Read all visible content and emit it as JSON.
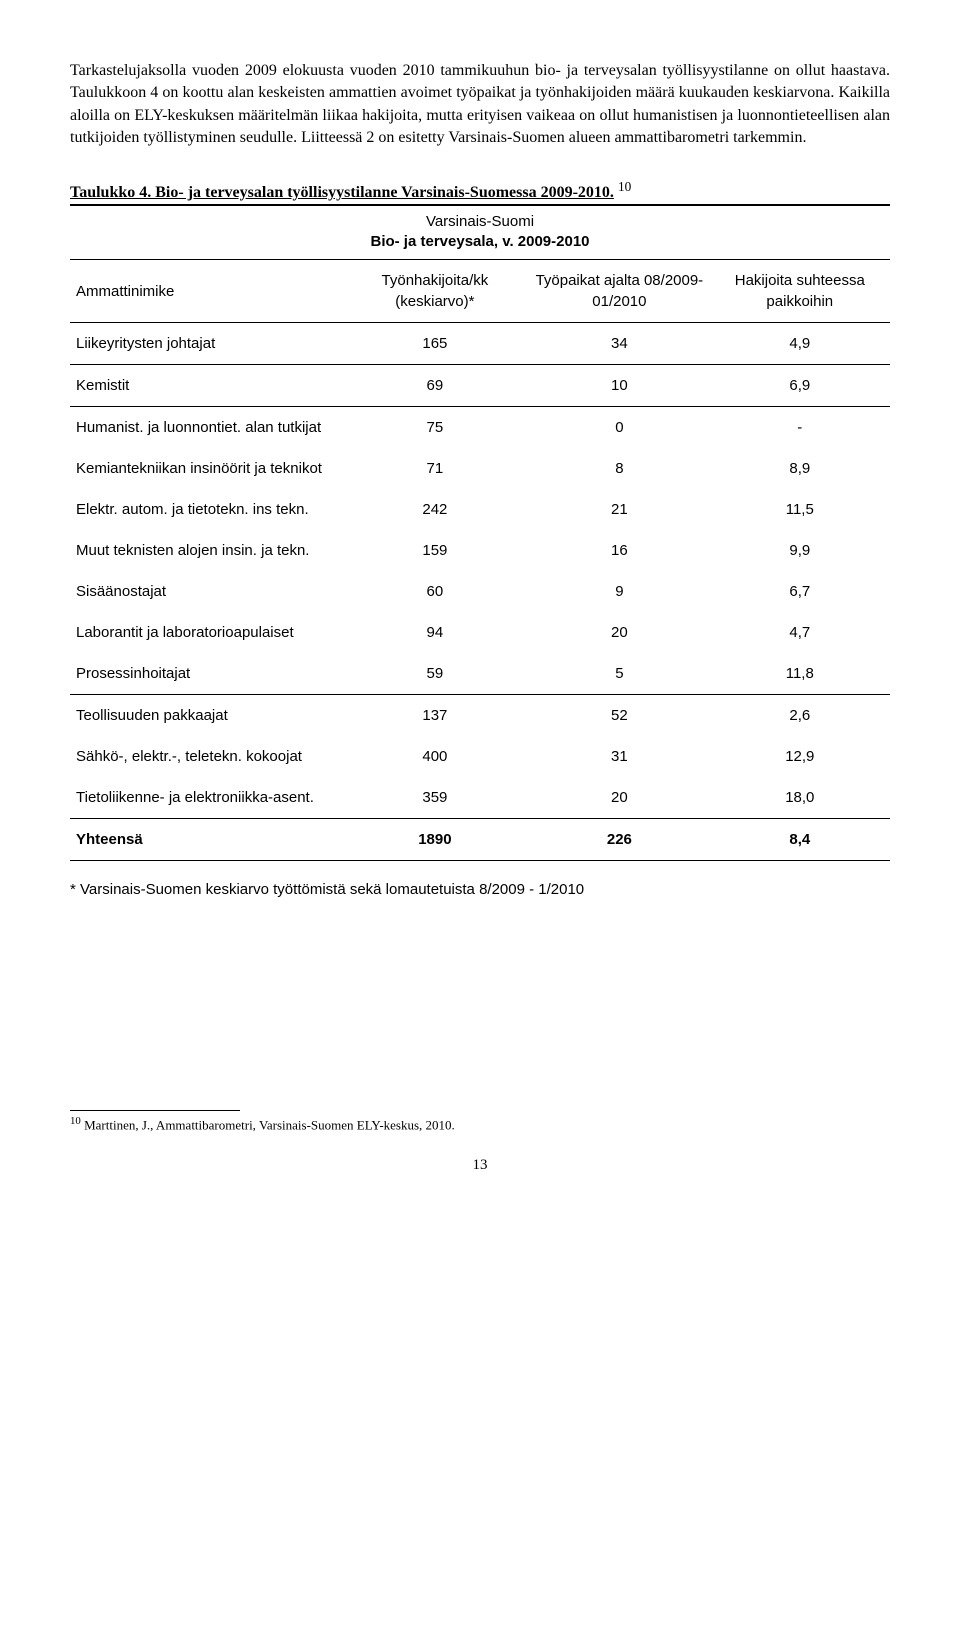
{
  "paragraph": "Tarkastelujaksolla vuoden 2009 elokuusta vuoden 2010 tammikuuhun bio- ja terveysalan työllisyystilanne on ollut haastava. Taulukkoon 4 on koottu alan keskeisten ammattien avoimet työpaikat ja työnhakijoiden määrä kuukauden keskiarvona. Kaikilla aloilla on ELY-keskuksen määritelmän liikaa hakijoita, mutta erityisen vaikeaa on ollut humanistisen ja luonnontieteellisen alan tutkijoiden työllistyminen seudulle. Liitteessä 2 on esitetty Varsinais-Suomen alueen ammattibarometri tarkemmin.",
  "caption": "Taulukko 4. Bio- ja terveysalan työllisyystilanne Varsinais-Suomessa 2009-2010.",
  "caption_sup": "10",
  "center_title_line1": "Varsinais-Suomi",
  "center_title_line2": "Bio- ja terveysala, v. 2009-2010",
  "headers": {
    "c1": "Ammattinimike",
    "c2": "Työnhakijoita/kk (keskiarvo)*",
    "c3": "Työpaikat ajalta 08/2009-01/2010",
    "c4": "Hakijoita suhteessa paikkoihin"
  },
  "rows": [
    {
      "name": "Liikeyritysten johtajat",
      "v1": "165",
      "v2": "34",
      "v3": "4,9",
      "sep": true
    },
    {
      "name": "Kemistit",
      "v1": "69",
      "v2": "10",
      "v3": "6,9",
      "sep": true
    },
    {
      "name": "Humanist. ja luonnontiet. alan tutkijat",
      "v1": "75",
      "v2": "0",
      "v3": "-",
      "sep": false
    },
    {
      "name": "Kemiantekniikan insinöörit ja teknikot",
      "v1": "71",
      "v2": "8",
      "v3": "8,9",
      "sep": false
    },
    {
      "name": "Elektr. autom. ja tietotekn. ins tekn.",
      "v1": "242",
      "v2": "21",
      "v3": "11,5",
      "sep": false
    },
    {
      "name": "Muut teknisten alojen insin. ja tekn.",
      "v1": "159",
      "v2": "16",
      "v3": "9,9",
      "sep": false
    },
    {
      "name": "Sisäänostajat",
      "v1": "60",
      "v2": "9",
      "v3": "6,7",
      "sep": false
    },
    {
      "name": "Laborantit ja laboratorioapulaiset",
      "v1": "94",
      "v2": "20",
      "v3": "4,7",
      "sep": false
    },
    {
      "name": "Prosessinhoitajat",
      "v1": "59",
      "v2": "5",
      "v3": "11,8",
      "sep": true
    },
    {
      "name": "Teollisuuden pakkaajat",
      "v1": "137",
      "v2": "52",
      "v3": "2,6",
      "sep": false
    },
    {
      "name": "Sähkö-, elektr.-, teletekn. kokoojat",
      "v1": "400",
      "v2": "31",
      "v3": "12,9",
      "sep": false
    },
    {
      "name": "Tietoliikenne- ja elektroniikka-asent.",
      "v1": "359",
      "v2": "20",
      "v3": "18,0",
      "sep": false
    }
  ],
  "total": {
    "name": "Yhteensä",
    "v1": "1890",
    "v2": "226",
    "v3": "8,4"
  },
  "footnote": "* Varsinais-Suomen keskiarvo työttömistä sekä lomautetuista 8/2009 - 1/2010",
  "bottom_footnote_num": "10",
  "bottom_footnote_text": " Marttinen, J., Ammattibarometri, Varsinais-Suomen ELY-keskus, 2010.",
  "page_number": "13"
}
